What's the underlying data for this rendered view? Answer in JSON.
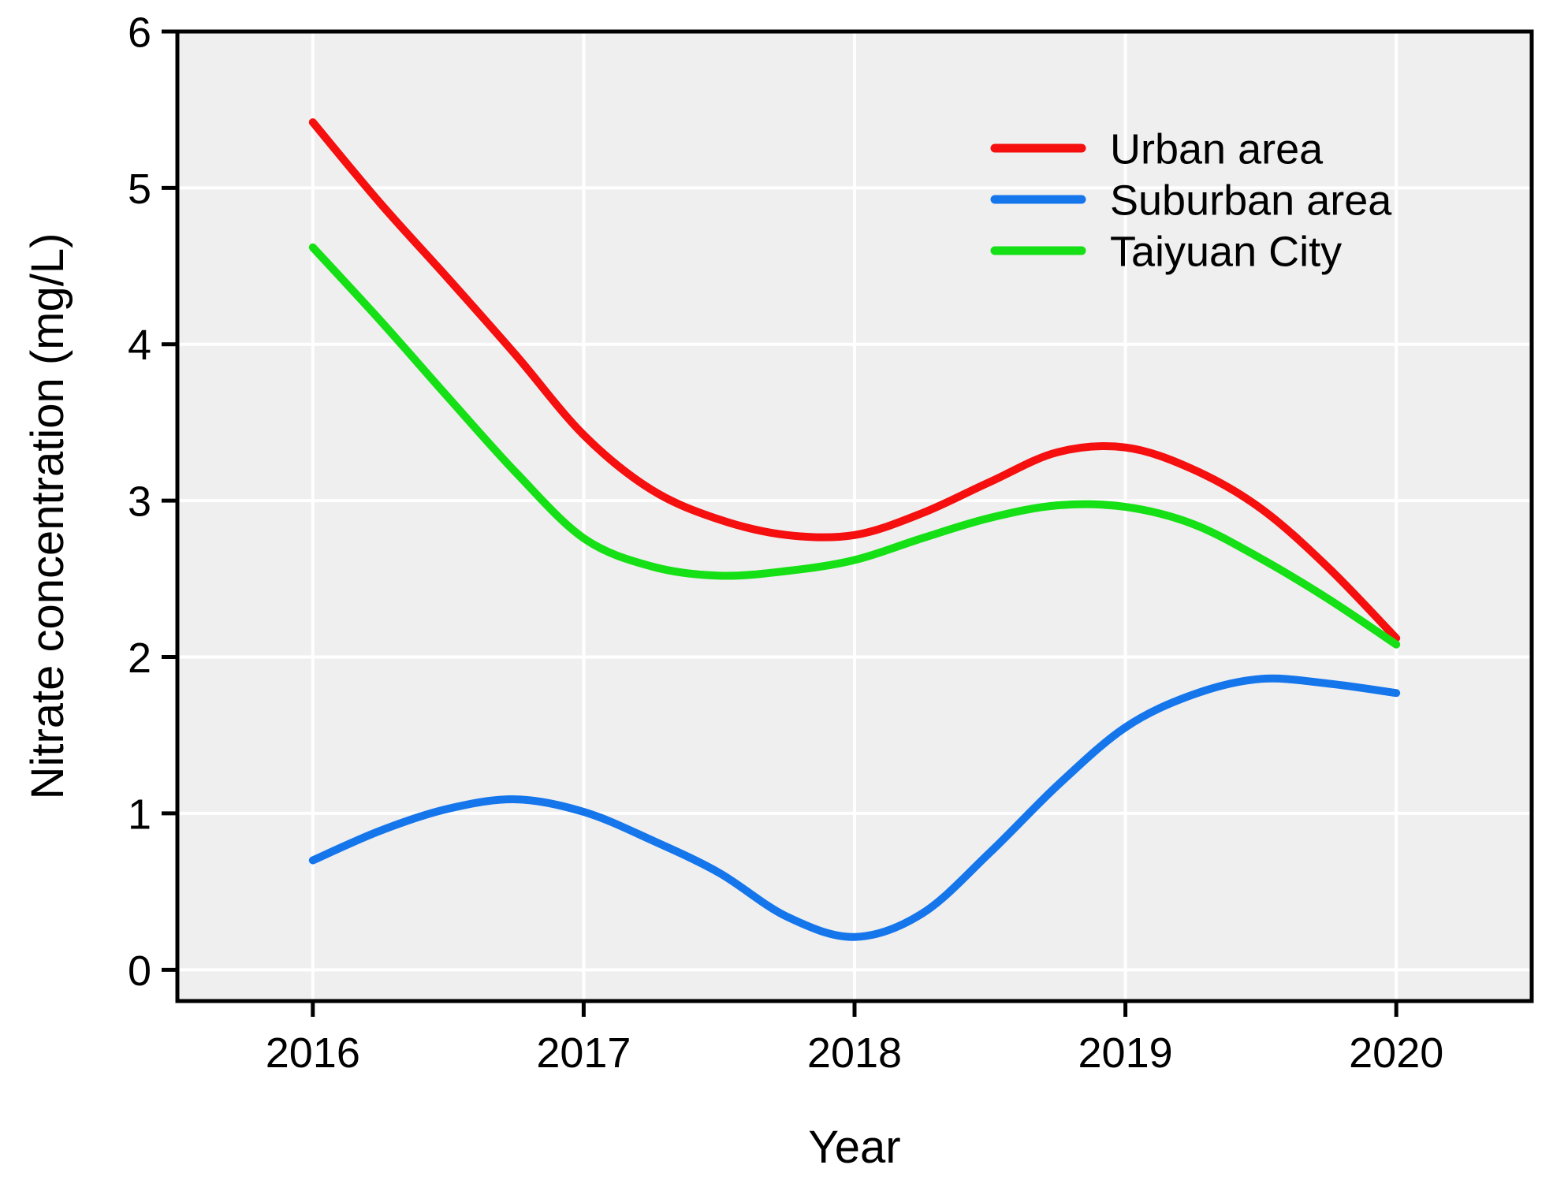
{
  "figure": {
    "background": "#ffffff",
    "plot_background": "#efefef",
    "grid_color": "#ffffff",
    "frame_color": "#000000",
    "text_color": "#000000"
  },
  "chart_data": {
    "type": "line",
    "title": "",
    "xlabel": "Year",
    "ylabel": "Nitrate concentration (mg/L)",
    "x_range": [
      2015.5,
      2020.5
    ],
    "y_range": [
      -0.2,
      6.0
    ],
    "x_ticks": [
      "2016",
      "2017",
      "2018",
      "2019",
      "2020"
    ],
    "x_tick_values": [
      2016,
      2017,
      2018,
      2019,
      2020
    ],
    "y_ticks": [
      "0",
      "1",
      "2",
      "3",
      "4",
      "5",
      "6"
    ],
    "y_tick_values": [
      0,
      1,
      2,
      3,
      4,
      5,
      6
    ],
    "grid": true,
    "legend_position": "top-right-inside",
    "series": [
      {
        "name": "Urban area",
        "color": "#f50f0f",
        "points": [
          [
            2016,
            5.42
          ],
          [
            2016.25,
            4.9
          ],
          [
            2016.5,
            4.42
          ],
          [
            2016.75,
            3.93
          ],
          [
            2017,
            3.42
          ],
          [
            2017.25,
            3.07
          ],
          [
            2017.5,
            2.88
          ],
          [
            2017.75,
            2.78
          ],
          [
            2018,
            2.78
          ],
          [
            2018.25,
            2.92
          ],
          [
            2018.5,
            3.12
          ],
          [
            2018.75,
            3.31
          ],
          [
            2019,
            3.34
          ],
          [
            2019.25,
            3.2
          ],
          [
            2019.5,
            2.95
          ],
          [
            2019.75,
            2.57
          ],
          [
            2020,
            2.12
          ]
        ]
      },
      {
        "name": "Suburban area",
        "color": "#1576ec",
        "points": [
          [
            2016,
            0.7
          ],
          [
            2016.25,
            0.89
          ],
          [
            2016.5,
            1.03
          ],
          [
            2016.75,
            1.09
          ],
          [
            2017,
            1.01
          ],
          [
            2017.25,
            0.83
          ],
          [
            2017.5,
            0.62
          ],
          [
            2017.75,
            0.34
          ],
          [
            2018,
            0.21
          ],
          [
            2018.25,
            0.36
          ],
          [
            2018.5,
            0.75
          ],
          [
            2018.75,
            1.18
          ],
          [
            2019,
            1.55
          ],
          [
            2019.25,
            1.76
          ],
          [
            2019.5,
            1.86
          ],
          [
            2019.75,
            1.83
          ],
          [
            2020,
            1.77
          ]
        ]
      },
      {
        "name": "Taiyuan City",
        "color": "#15e015",
        "points": [
          [
            2016,
            4.62
          ],
          [
            2016.25,
            4.15
          ],
          [
            2016.5,
            3.66
          ],
          [
            2016.75,
            3.18
          ],
          [
            2017,
            2.76
          ],
          [
            2017.25,
            2.58
          ],
          [
            2017.5,
            2.52
          ],
          [
            2017.75,
            2.55
          ],
          [
            2018,
            2.62
          ],
          [
            2018.25,
            2.76
          ],
          [
            2018.5,
            2.89
          ],
          [
            2018.75,
            2.97
          ],
          [
            2019,
            2.96
          ],
          [
            2019.25,
            2.85
          ],
          [
            2019.5,
            2.63
          ],
          [
            2019.75,
            2.37
          ],
          [
            2020,
            2.08
          ]
        ]
      }
    ]
  }
}
